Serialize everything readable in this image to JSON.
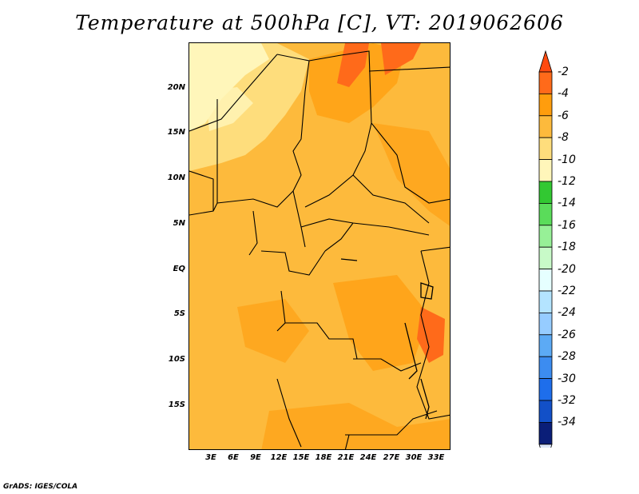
{
  "title": "Temperature at 500hPa [C], VT: 2019062606",
  "credit": "GrADS: IGES/COLA",
  "map": {
    "lat_labels": [
      "20N",
      "15N",
      "10N",
      "5N",
      "EQ",
      "5S",
      "10S",
      "15S"
    ],
    "lon_labels": [
      "3E",
      "6E",
      "9E",
      "12E",
      "15E",
      "18E",
      "21E",
      "24E",
      "27E",
      "30E",
      "33E"
    ],
    "background_fill": "#FDBA3C"
  },
  "legend": {
    "labels": [
      "-2",
      "-4",
      "-6",
      "-8",
      "-10",
      "-12",
      "-14",
      "-16",
      "-18",
      "-20",
      "-22",
      "-24",
      "-26",
      "-28",
      "-30",
      "-32",
      "-34"
    ],
    "colors": [
      "#FF6A1A",
      "#FF9D0D",
      "#FDBA3C",
      "#FEDD7C",
      "#FFF6BA",
      "#32C832",
      "#5ADC5A",
      "#97F097",
      "#C8FAC8",
      "#E6FFFF",
      "#B4E4FF",
      "#96CCFF",
      "#5CAAF5",
      "#3C8CF0",
      "#1E6EEB",
      "#1250C8",
      "#0A1E78"
    ],
    "top_arrow_color": "#FF4A10",
    "bottom_arrow_color": "#DCE6F8"
  }
}
